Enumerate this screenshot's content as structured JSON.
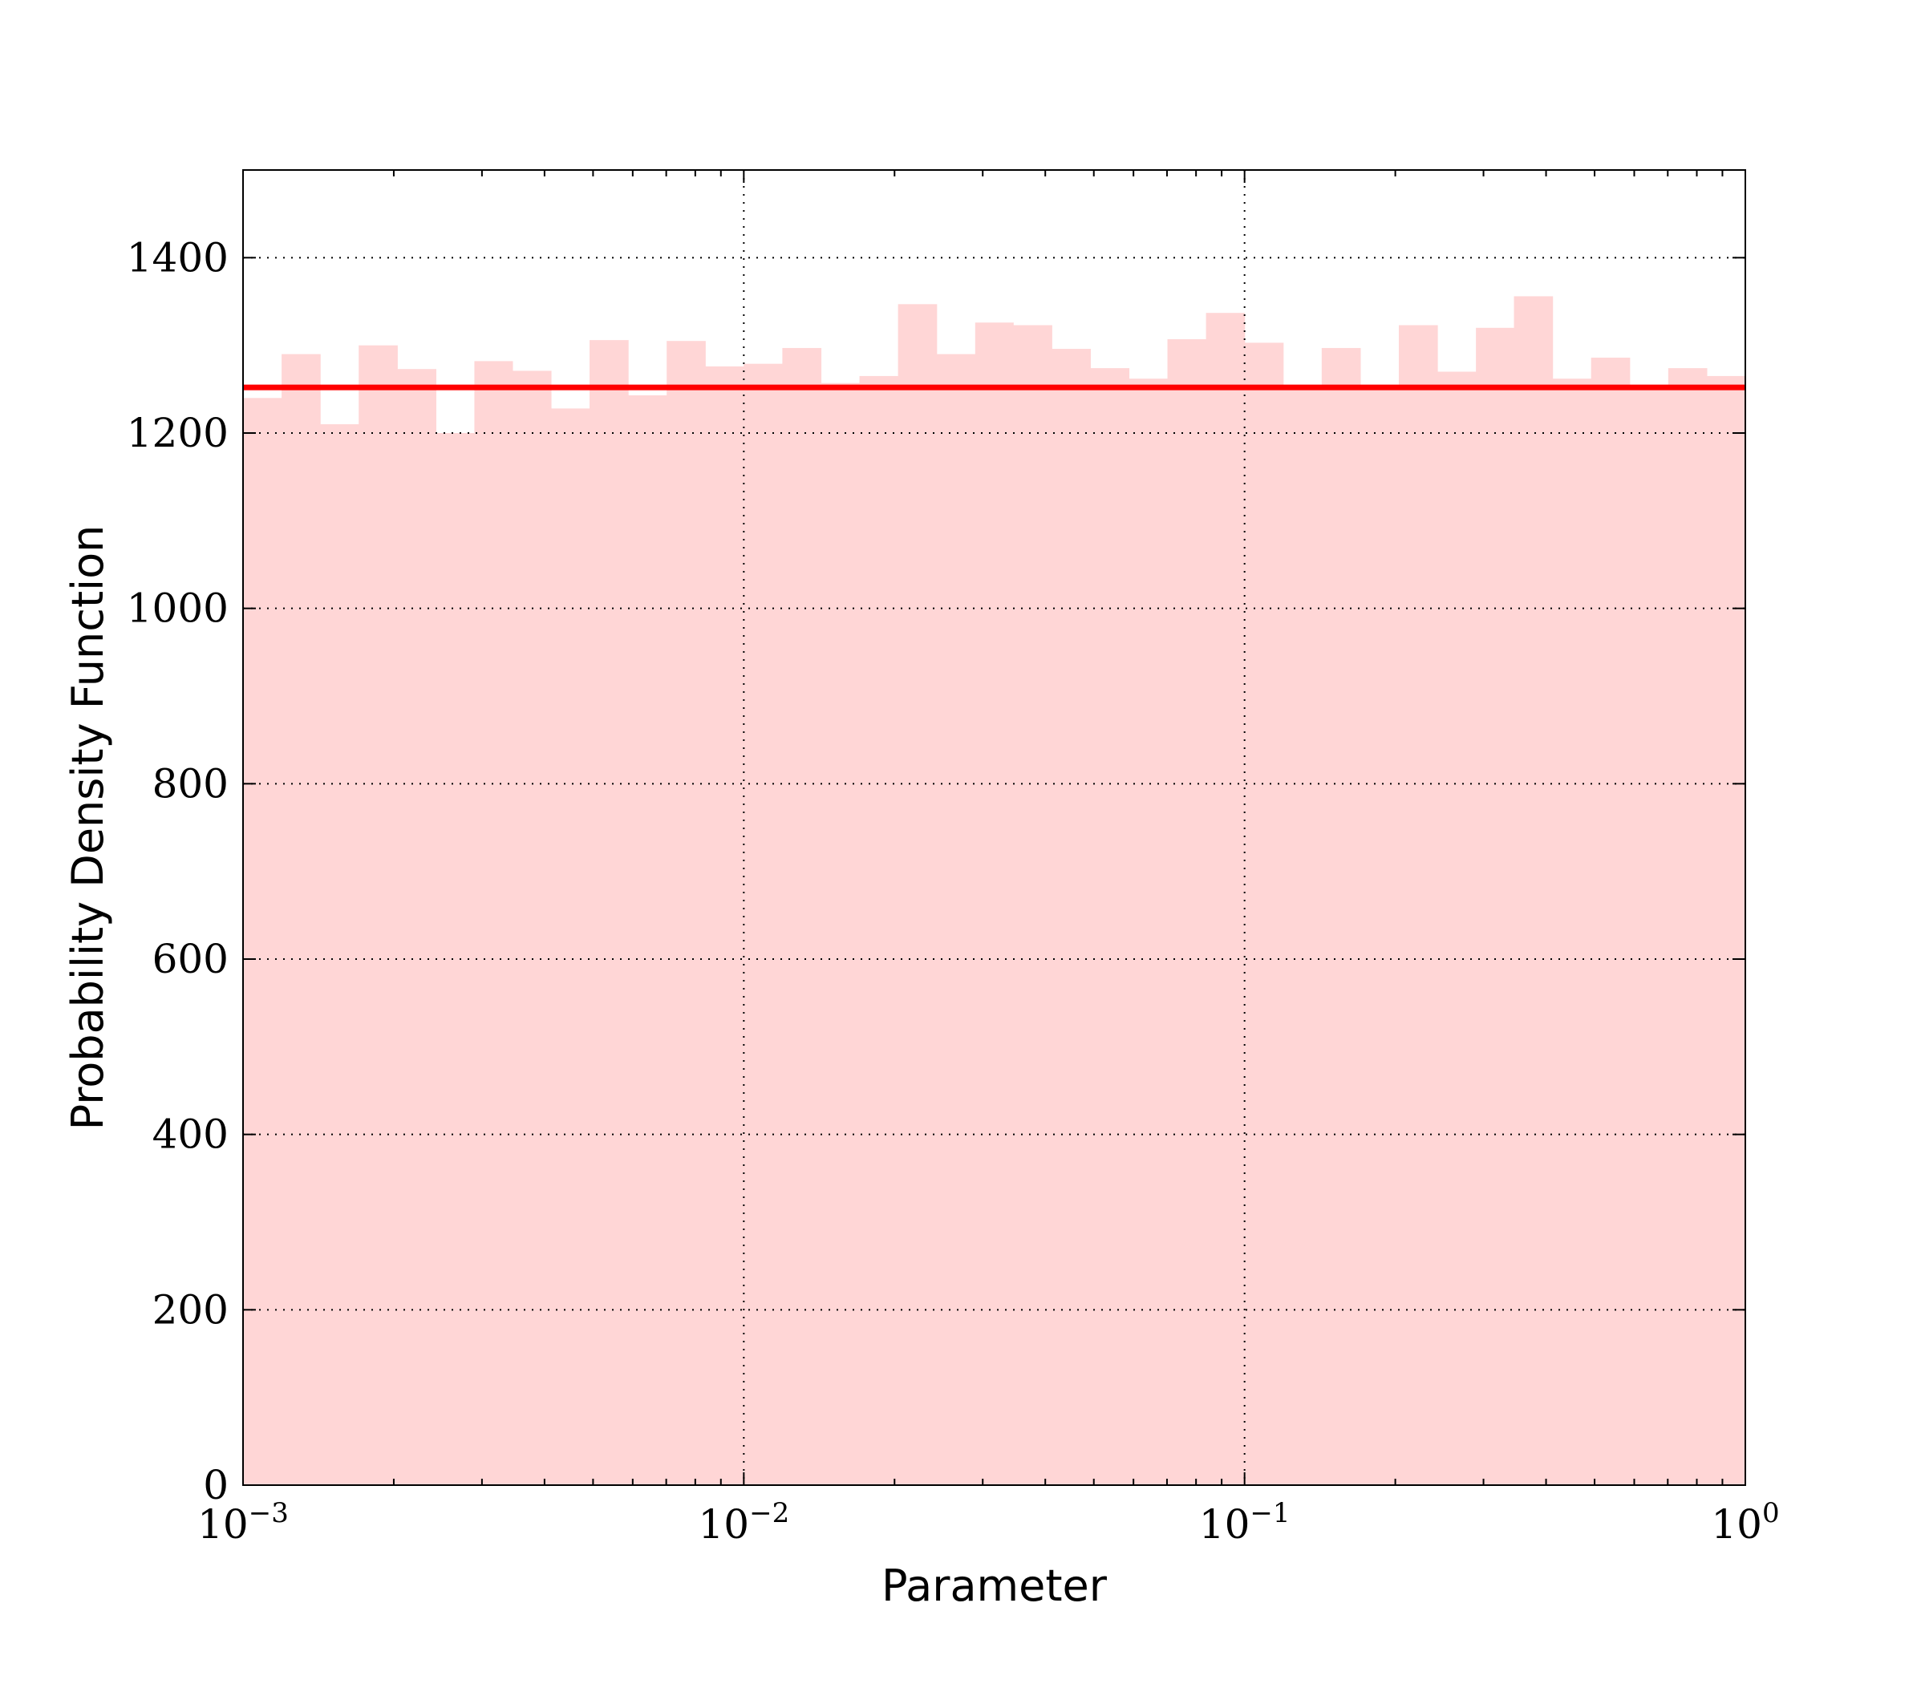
{
  "chart_data": {
    "type": "bar",
    "title": "",
    "xlabel": "Parameter",
    "ylabel": "Probability Density Function",
    "xscale": "log",
    "xlim": [
      0.001,
      1
    ],
    "ylim": [
      0,
      1500
    ],
    "grid": true,
    "x_ticks": [
      {
        "base": "10",
        "exp": "−3",
        "value": 0.001
      },
      {
        "base": "10",
        "exp": "−2",
        "value": 0.01
      },
      {
        "base": "10",
        "exp": "−1",
        "value": 0.1
      },
      {
        "base": "10",
        "exp": "0",
        "value": 1
      }
    ],
    "y_ticks": [
      "0",
      "200",
      "400",
      "600",
      "800",
      "1000",
      "1200",
      "1400"
    ],
    "histogram": {
      "color": "#ffd6d6",
      "bin_edges_log10": [
        -3,
        -2.923,
        -2.846,
        -2.769,
        -2.692,
        -2.615,
        -2.538,
        -2.462,
        -2.385,
        -2.308,
        -2.231,
        -2.154,
        -2.077,
        -2,
        -1.923,
        -1.846,
        -1.769,
        -1.692,
        -1.615,
        -1.538,
        -1.462,
        -1.385,
        -1.308,
        -1.231,
        -1.154,
        -1.077,
        -1,
        -0.923,
        -0.846,
        -0.769,
        -0.692,
        -0.615,
        -0.538,
        -0.462,
        -0.385,
        -0.308,
        -0.231,
        -0.154,
        -0.077,
        0
      ],
      "values": [
        1240,
        1290,
        1210,
        1300,
        1273,
        1200,
        1282,
        1271,
        1228,
        1306,
        1243,
        1305,
        1276,
        1279,
        1297,
        1257,
        1265,
        1347,
        1290,
        1326,
        1323,
        1296,
        1274,
        1262,
        1307,
        1337,
        1303,
        1255,
        1297,
        1255,
        1323,
        1270,
        1320,
        1356,
        1262,
        1286,
        1255,
        1274,
        1265
      ]
    },
    "reference_line": {
      "value": 1252,
      "color": "#ff0000"
    }
  }
}
